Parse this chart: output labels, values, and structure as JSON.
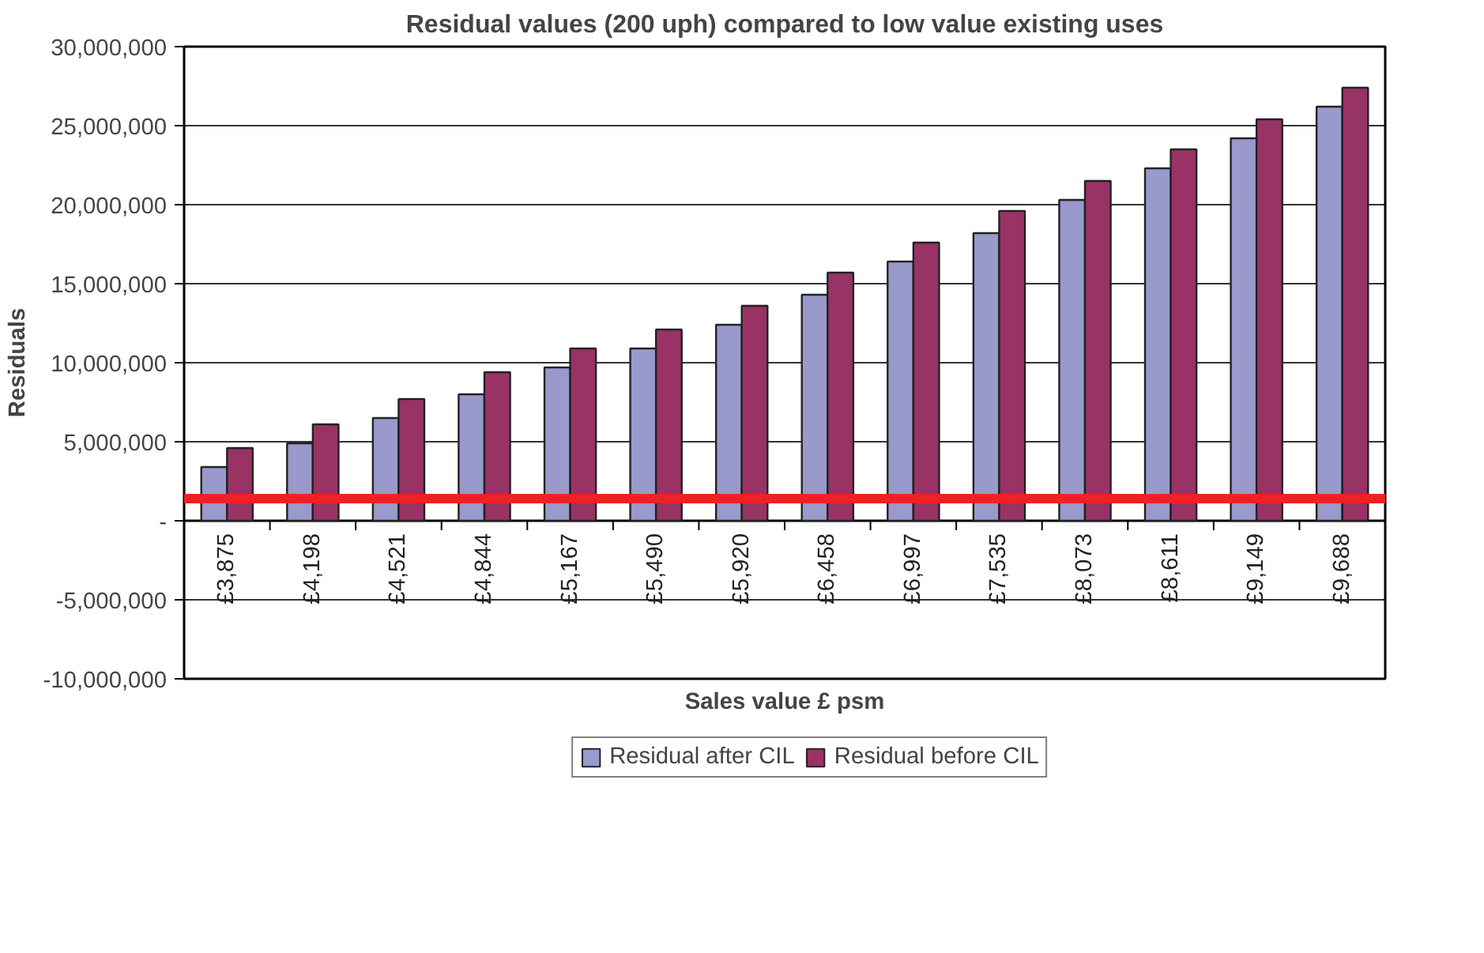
{
  "chart_data": {
    "type": "bar",
    "title": "Residual values (200 uph) compared to low value existing uses",
    "xlabel": "Sales value £ psm",
    "ylabel": "Residuals",
    "categories": [
      "£3,875",
      "£4,198",
      "£4,521",
      "£4,844",
      "£5,167",
      "£5,490",
      "£5,920",
      "£6,458",
      "£6,997",
      "£7,535",
      "£8,073",
      "£8,611",
      "£9,149",
      "£9,688"
    ],
    "series": [
      {
        "name": "Residual after CIL",
        "color": "#9999cc",
        "values": [
          3400000,
          4900000,
          6500000,
          8000000,
          9700000,
          10900000,
          12400000,
          14300000,
          16400000,
          18200000,
          20300000,
          22300000,
          24200000,
          26200000
        ]
      },
      {
        "name": "Residual before CIL",
        "color": "#993366",
        "values": [
          4600000,
          6100000,
          7700000,
          9400000,
          10900000,
          12100000,
          13600000,
          15700000,
          17600000,
          19600000,
          21500000,
          23500000,
          25400000,
          27400000
        ]
      }
    ],
    "ylim": [
      -10000000,
      30000000
    ],
    "yticks": [
      {
        "value": -10000000,
        "label": "-10,000,000"
      },
      {
        "value": -5000000,
        "label": "-5,000,000"
      },
      {
        "value": 0,
        "label": "-"
      },
      {
        "value": 5000000,
        "label": "5,000,000"
      },
      {
        "value": 10000000,
        "label": "10,000,000"
      },
      {
        "value": 15000000,
        "label": "15,000,000"
      },
      {
        "value": 20000000,
        "label": "20,000,000"
      },
      {
        "value": 25000000,
        "label": "25,000,000"
      },
      {
        "value": 30000000,
        "label": "30,000,000"
      }
    ],
    "ref_lines": [
      {
        "axis": "y",
        "value": 1400000,
        "color": "#ee2222"
      }
    ],
    "grid": "y",
    "legend": "bottom"
  }
}
